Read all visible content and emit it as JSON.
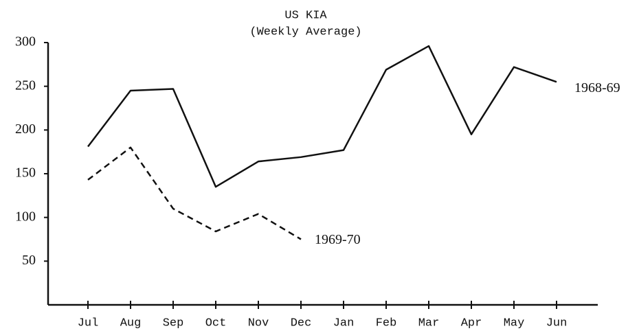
{
  "chart_data": {
    "type": "line",
    "title": "US KIA",
    "subtitle": "(Weekly Average)",
    "categories": [
      "Jul",
      "Aug",
      "Sep",
      "Oct",
      "Nov",
      "Dec",
      "Jan",
      "Feb",
      "Mar",
      "Apr",
      "May",
      "Jun"
    ],
    "series": [
      {
        "name": "1968-69",
        "color": "#111111",
        "style": "solid",
        "values": [
          181,
          245,
          247,
          135,
          164,
          169,
          177,
          269,
          296,
          195,
          272,
          255
        ]
      },
      {
        "name": "1969-70",
        "color": "#111111",
        "style": "dashed",
        "values": [
          143,
          180,
          110,
          84,
          104,
          75,
          null,
          null,
          null,
          null,
          null,
          null
        ]
      }
    ],
    "ylim": [
      0,
      300
    ],
    "yticks": [
      50,
      100,
      150,
      200,
      250,
      300
    ],
    "grid": false
  }
}
